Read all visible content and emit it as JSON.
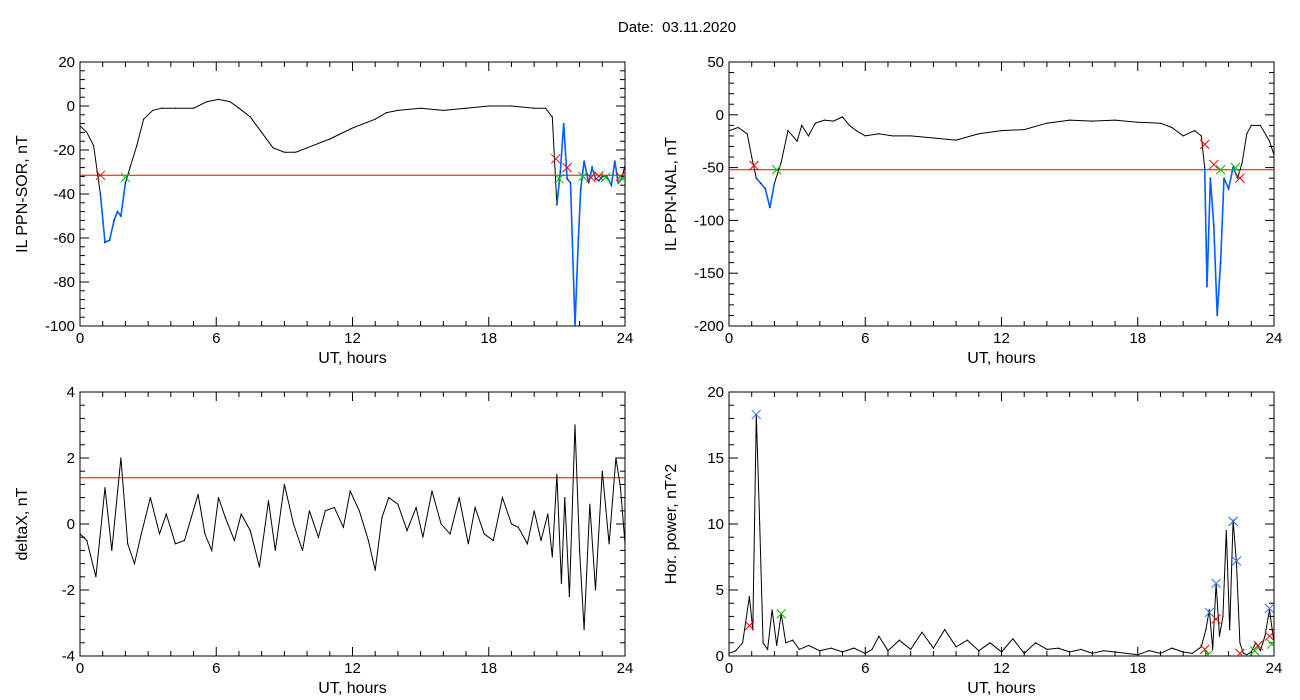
{
  "title": "Date:  03.11.2020",
  "colors": {
    "axis": "#000000",
    "threshold": "#ff0000",
    "highlight": "#0060ff",
    "marker_red": "#ff0000",
    "marker_green": "#00c000",
    "marker_blue": "#3070ff"
  },
  "chart_data": [
    {
      "id": "sor",
      "type": "line",
      "xlabel": "UT, hours",
      "ylabel": "IL PPN-SOR, nT",
      "xlim": [
        0,
        24
      ],
      "ylim": [
        -100,
        20
      ],
      "xticks": [
        0,
        6,
        12,
        18,
        24
      ],
      "xtick_labels": [
        "0",
        "6",
        "12",
        "18",
        "24"
      ],
      "yticks": [
        -100,
        -80,
        -60,
        -40,
        -20,
        0,
        20
      ],
      "ytick_labels": [
        "-100",
        "-80",
        "-60",
        "-40",
        "-20",
        "0",
        "20"
      ],
      "threshold": -31.5,
      "series": [
        {
          "x": [
            0,
            0.3,
            0.6,
            0.9,
            1.1,
            1.3,
            1.5,
            1.65,
            1.8,
            2.0,
            2.2,
            2.5,
            2.8,
            3.2,
            3.6,
            4.2,
            5.0,
            5.6,
            6.1,
            6.6,
            7.0,
            7.5,
            8.0,
            8.5,
            9.0,
            9.5,
            10.0,
            11.0,
            12.0,
            13.0,
            13.5,
            14.0,
            15.0,
            16.0,
            17.0,
            18.0,
            19.0,
            20.0,
            20.5,
            20.8,
            21.0,
            21.15,
            21.3,
            21.45,
            21.6,
            21.8,
            21.95,
            22.05,
            22.2,
            22.4,
            22.55,
            22.7,
            22.85,
            23.0,
            23.2,
            23.4,
            23.55,
            23.7,
            23.85,
            24.0
          ],
          "y": [
            -9,
            -12,
            -18,
            -40,
            -62,
            -61,
            -52,
            -48,
            -50,
            -35,
            -28,
            -18,
            -6,
            -2,
            -1,
            -1,
            -1,
            2,
            3,
            2,
            -1,
            -5,
            -12,
            -19,
            -21,
            -21,
            -19,
            -15,
            -10,
            -6,
            -3,
            -2,
            -1,
            -2,
            -1,
            0,
            0,
            -1,
            -1,
            -5,
            -45,
            -30,
            -8,
            -33,
            -35,
            -100,
            -60,
            -38,
            -25,
            -35,
            -28,
            -33,
            -34,
            -32,
            -32,
            -36,
            -25,
            -35,
            -33,
            -27
          ]
        }
      ],
      "highlight_intervals": [
        [
          0.9,
          2.0
        ],
        [
          20.95,
          23.9
        ]
      ],
      "markers_red": [
        [
          0.9,
          -31.5
        ],
        [
          20.95,
          -24
        ],
        [
          21.45,
          -28
        ],
        [
          22.5,
          -32.5
        ],
        [
          22.85,
          -31.8
        ],
        [
          23.8,
          -32
        ]
      ],
      "markers_green": [
        [
          2.0,
          -32.5
        ],
        [
          21.1,
          -33
        ],
        [
          22.15,
          -32
        ],
        [
          23.15,
          -32.5
        ],
        [
          23.9,
          -33
        ]
      ]
    },
    {
      "id": "nal",
      "type": "line",
      "xlabel": "UT, hours",
      "ylabel": "IL PPN-NAL, nT",
      "xlim": [
        0,
        24
      ],
      "ylim": [
        -200,
        50
      ],
      "xticks": [
        0,
        6,
        12,
        18,
        24
      ],
      "xtick_labels": [
        "0",
        "6",
        "12",
        "18",
        "24"
      ],
      "yticks": [
        -200,
        -150,
        -100,
        -50,
        0,
        50
      ],
      "ytick_labels": [
        "-200",
        "-150",
        "-100",
        "-50",
        "0",
        "50"
      ],
      "threshold": -52,
      "series": [
        {
          "x": [
            0,
            0.4,
            0.8,
            1.0,
            1.2,
            1.4,
            1.6,
            1.8,
            2.0,
            2.3,
            2.6,
            3.0,
            3.2,
            3.5,
            3.8,
            4.2,
            4.6,
            5.0,
            5.3,
            5.6,
            6.0,
            6.6,
            7.2,
            8.0,
            9.0,
            10.0,
            11.0,
            12.0,
            13.0,
            14.0,
            15.0,
            16.0,
            17.0,
            18.0,
            19.0,
            19.5,
            20.0,
            20.5,
            20.8,
            20.95,
            21.05,
            21.2,
            21.35,
            21.5,
            21.65,
            21.8,
            22.0,
            22.2,
            22.4,
            22.6,
            22.8,
            23.0,
            23.4,
            23.8,
            24.0
          ],
          "y": [
            -15,
            -12,
            -18,
            -40,
            -60,
            -65,
            -70,
            -88,
            -65,
            -45,
            -15,
            -25,
            -10,
            -20,
            -8,
            -5,
            -6,
            -2,
            -10,
            -15,
            -20,
            -18,
            -20,
            -20,
            -22,
            -24,
            -18,
            -15,
            -14,
            -8,
            -5,
            -6,
            -5,
            -7,
            -8,
            -12,
            -20,
            -15,
            -20,
            -50,
            -163,
            -60,
            -105,
            -190,
            -140,
            -60,
            -70,
            -50,
            -60,
            -45,
            -18,
            -10,
            -10,
            -25,
            -38
          ]
        }
      ],
      "highlight_intervals": [
        [
          1.2,
          2.1
        ],
        [
          20.95,
          22.5
        ]
      ],
      "markers_red": [
        [
          1.1,
          -48
        ],
        [
          20.95,
          -28
        ],
        [
          21.35,
          -47
        ],
        [
          22.5,
          -60
        ]
      ],
      "markers_green": [
        [
          2.1,
          -52
        ],
        [
          21.65,
          -52
        ],
        [
          22.3,
          -50
        ]
      ]
    },
    {
      "id": "deltax",
      "type": "line",
      "xlabel": "UT, hours",
      "ylabel": "deltaX, nT",
      "xlim": [
        0,
        24
      ],
      "ylim": [
        -4,
        4
      ],
      "xticks": [
        0,
        6,
        12,
        18,
        24
      ],
      "xtick_labels": [
        "0",
        "6",
        "12",
        "18",
        "24"
      ],
      "yticks": [
        -4,
        -2,
        0,
        2,
        4
      ],
      "ytick_labels": [
        "-4",
        "-2",
        "0",
        "2",
        "4"
      ],
      "threshold": 1.4,
      "series": [
        {
          "x": [
            0,
            0.3,
            0.7,
            1.1,
            1.4,
            1.8,
            2.1,
            2.4,
            2.7,
            3.1,
            3.5,
            3.8,
            4.2,
            4.6,
            4.9,
            5.2,
            5.5,
            5.8,
            6.1,
            6.4,
            6.8,
            7.1,
            7.5,
            7.9,
            8.3,
            8.6,
            9.0,
            9.4,
            9.8,
            10.1,
            10.5,
            10.8,
            11.2,
            11.6,
            11.9,
            12.3,
            12.7,
            13.0,
            13.3,
            13.6,
            14.0,
            14.4,
            14.8,
            15.1,
            15.5,
            15.9,
            16.3,
            16.7,
            17.1,
            17.4,
            17.8,
            18.2,
            18.6,
            19.0,
            19.3,
            19.7,
            20.0,
            20.3,
            20.6,
            20.8,
            21.0,
            21.2,
            21.35,
            21.55,
            21.8,
            22.0,
            22.2,
            22.45,
            22.7,
            23.0,
            23.3,
            23.6,
            23.8,
            24.0
          ],
          "y": [
            -0.3,
            -0.5,
            -1.6,
            1.1,
            -0.8,
            2.0,
            -0.6,
            -1.2,
            -0.3,
            0.8,
            -0.3,
            0.3,
            -0.6,
            -0.5,
            0.2,
            0.9,
            -0.3,
            -0.8,
            0.8,
            0.2,
            -0.5,
            0.3,
            -0.2,
            -1.3,
            0.7,
            -0.8,
            1.2,
            0.0,
            -0.8,
            0.4,
            -0.4,
            0.4,
            0.5,
            -0.1,
            1.0,
            0.4,
            -0.5,
            -1.4,
            0.2,
            0.8,
            0.6,
            -0.2,
            0.5,
            -0.4,
            1.0,
            0.0,
            -0.3,
            0.8,
            -0.6,
            0.5,
            -0.3,
            -0.5,
            0.8,
            0.0,
            -0.1,
            -0.6,
            0.4,
            -0.5,
            0.3,
            -1.0,
            1.5,
            -1.8,
            0.8,
            -2.2,
            3.0,
            -0.8,
            -3.2,
            0.6,
            -2.0,
            1.6,
            -0.6,
            2.0,
            1.1,
            -0.6
          ]
        }
      ]
    },
    {
      "id": "power",
      "type": "line",
      "xlabel": "UT, hours",
      "ylabel": "Hor. power, nT^2",
      "xlim": [
        0,
        24
      ],
      "ylim": [
        0,
        20
      ],
      "xticks": [
        0,
        6,
        12,
        18,
        24
      ],
      "xtick_labels": [
        "0",
        "6",
        "12",
        "18",
        "24"
      ],
      "yticks": [
        0,
        5,
        10,
        15,
        20
      ],
      "ytick_labels": [
        "0",
        "5",
        "10",
        "15",
        "20"
      ],
      "series": [
        {
          "x": [
            0,
            0.3,
            0.6,
            0.9,
            1.05,
            1.2,
            1.35,
            1.5,
            1.7,
            1.9,
            2.1,
            2.3,
            2.5,
            2.8,
            3.1,
            3.5,
            4.0,
            4.5,
            5.0,
            5.5,
            6.0,
            6.3,
            6.6,
            7.0,
            7.5,
            8.0,
            8.5,
            9.0,
            9.5,
            10.0,
            10.5,
            11.0,
            11.5,
            12.0,
            12.5,
            13.0,
            13.5,
            14.0,
            14.5,
            15.0,
            15.5,
            16.0,
            16.5,
            17.0,
            17.5,
            18.0,
            18.5,
            19.0,
            19.5,
            20.0,
            20.4,
            20.8,
            21.0,
            21.15,
            21.3,
            21.45,
            21.6,
            21.75,
            21.9,
            22.05,
            22.2,
            22.35,
            22.5,
            22.65,
            22.8,
            23.0,
            23.2,
            23.4,
            23.6,
            23.8,
            24.0
          ],
          "y": [
            0.2,
            0.4,
            1.0,
            4.5,
            2.0,
            18.3,
            10.0,
            1.0,
            0.5,
            3.5,
            0.8,
            3.2,
            1.0,
            1.2,
            0.5,
            0.8,
            0.4,
            0.6,
            0.3,
            0.6,
            0.2,
            0.5,
            1.5,
            0.4,
            1.2,
            0.5,
            1.8,
            0.6,
            2.0,
            0.7,
            1.2,
            0.4,
            1.0,
            0.3,
            1.3,
            0.2,
            1.0,
            0.5,
            0.6,
            0.3,
            0.5,
            0.2,
            0.4,
            0.3,
            0.2,
            0.1,
            0.4,
            0.2,
            0.6,
            0.3,
            0.2,
            0.7,
            2.0,
            3.5,
            0.5,
            5.5,
            1.5,
            3.0,
            9.5,
            2.0,
            10.3,
            7.0,
            1.0,
            0.2,
            0.1,
            0.3,
            1.0,
            0.4,
            1.5,
            3.5,
            1.0
          ]
        }
      ],
      "markers_red": [
        [
          0.9,
          2.3
        ],
        [
          20.95,
          0.5
        ],
        [
          21.45,
          2.8
        ],
        [
          22.5,
          0.2
        ],
        [
          23.3,
          0.8
        ],
        [
          23.8,
          1.5
        ]
      ],
      "markers_green": [
        [
          2.3,
          3.2
        ],
        [
          21.1,
          0.1
        ],
        [
          22.2,
          10.2
        ],
        [
          23.15,
          0.4
        ],
        [
          23.9,
          0.9
        ]
      ],
      "markers_blue": [
        [
          1.2,
          18.3
        ],
        [
          21.15,
          3.3
        ],
        [
          21.45,
          5.5
        ],
        [
          22.2,
          10.2
        ],
        [
          22.35,
          7.2
        ],
        [
          23.8,
          3.6
        ]
      ]
    }
  ]
}
